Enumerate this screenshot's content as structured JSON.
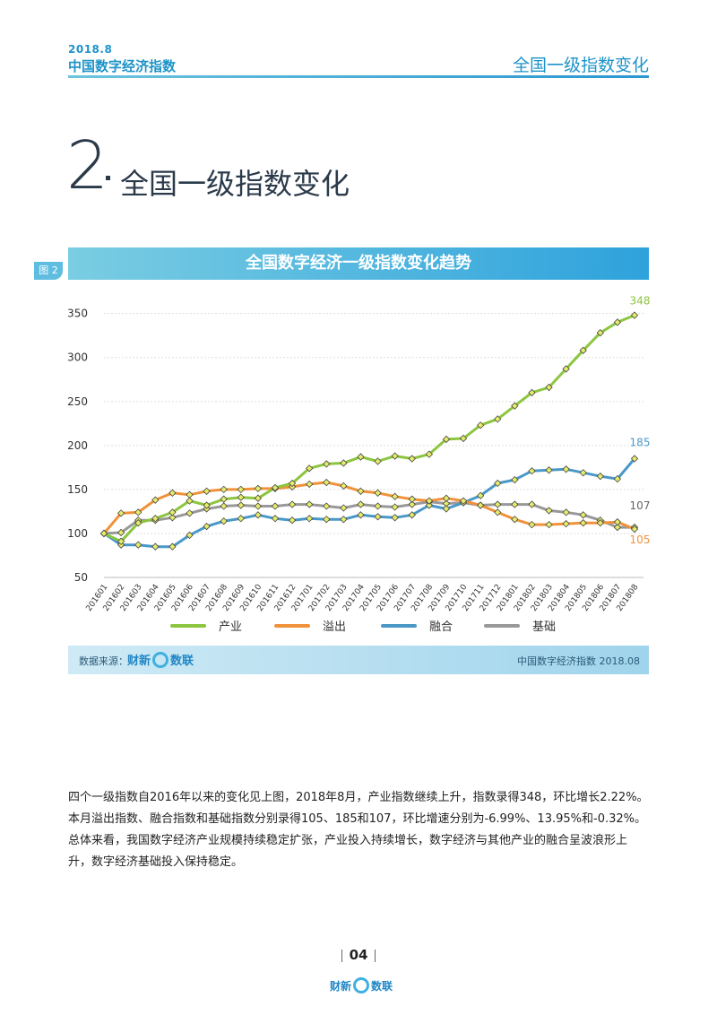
{
  "header": {
    "date": "2018.8",
    "title": "中国数字经济指数",
    "section_right": "全国一级指数变化"
  },
  "section": {
    "number": "2",
    "title": "全国一级指数变化"
  },
  "figure": {
    "tag": "图 2",
    "title": "全国数字经济一级指数变化趋势"
  },
  "source": {
    "label": "数据来源：",
    "logo_left": "财新",
    "logo_right": "数联",
    "right_text": "中国数字经济指数 2018.08"
  },
  "paragraph": [
    "四个一级指数自2016年以来的变化见上图，2018年8月，产业指数继续上升，指数录得348，环比增长2.22%。",
    "本月溢出指数、融合指数和基础指数分别录得105、185和107，环比增速分别为-6.99%、13.95%和-0.32%。",
    "总体来看，我国数字经济产业规模持续稳定扩张，产业投入持续增长，数字经济与其他产业的融合呈波浪形上",
    "升，数字经济基础投入保持稳定。"
  ],
  "page": {
    "number": "04",
    "logo_left": "财新",
    "logo_right": "数联"
  },
  "chart_data": {
    "type": "line",
    "title": "全国数字经济一级指数变化趋势",
    "ylim": [
      50,
      370
    ],
    "yticks": [
      50,
      100,
      150,
      200,
      250,
      300,
      350
    ],
    "grid": true,
    "legend_position": "bottom",
    "categories": [
      "201601",
      "201602",
      "201603",
      "201604",
      "201605",
      "201606",
      "201607",
      "201608",
      "201609",
      "201610",
      "201611",
      "201612",
      "201701",
      "201702",
      "201703",
      "201704",
      "201705",
      "201706",
      "201707",
      "201708",
      "201709",
      "201710",
      "201711",
      "201712",
      "201801",
      "201802",
      "201803",
      "201804",
      "201805",
      "201806",
      "201807",
      "201808"
    ],
    "series": [
      {
        "name": "产业",
        "color": "#8cc63f",
        "end_label": "348",
        "values": [
          100,
          91,
          112,
          117,
          124,
          137,
          132,
          139,
          141,
          140,
          152,
          157,
          174,
          179,
          180,
          187,
          182,
          188,
          185,
          190,
          207,
          208,
          223,
          230,
          245,
          260,
          266,
          287,
          308,
          328,
          340,
          348
        ]
      },
      {
        "name": "溢出",
        "color": "#f0923a",
        "end_label": "105",
        "values": [
          100,
          123,
          124,
          138,
          146,
          144,
          148,
          150,
          150,
          151,
          151,
          153,
          156,
          158,
          154,
          148,
          146,
          142,
          139,
          137,
          140,
          137,
          132,
          124,
          116,
          110,
          110,
          111,
          112,
          112,
          113,
          105
        ]
      },
      {
        "name": "融合",
        "color": "#4a98c8",
        "end_label": "185",
        "values": [
          100,
          87,
          87,
          85,
          85,
          98,
          108,
          114,
          117,
          121,
          117,
          115,
          117,
          116,
          116,
          121,
          119,
          118,
          121,
          132,
          128,
          135,
          143,
          157,
          161,
          171,
          172,
          173,
          169,
          165,
          162,
          185
        ]
      },
      {
        "name": "基础",
        "color": "#999999",
        "end_label": "107",
        "values": [
          100,
          101,
          115,
          115,
          118,
          123,
          128,
          131,
          132,
          131,
          131,
          133,
          133,
          131,
          129,
          133,
          131,
          130,
          133,
          136,
          134,
          135,
          132,
          133,
          133,
          133,
          126,
          124,
          121,
          115,
          107,
          107
        ]
      }
    ]
  }
}
